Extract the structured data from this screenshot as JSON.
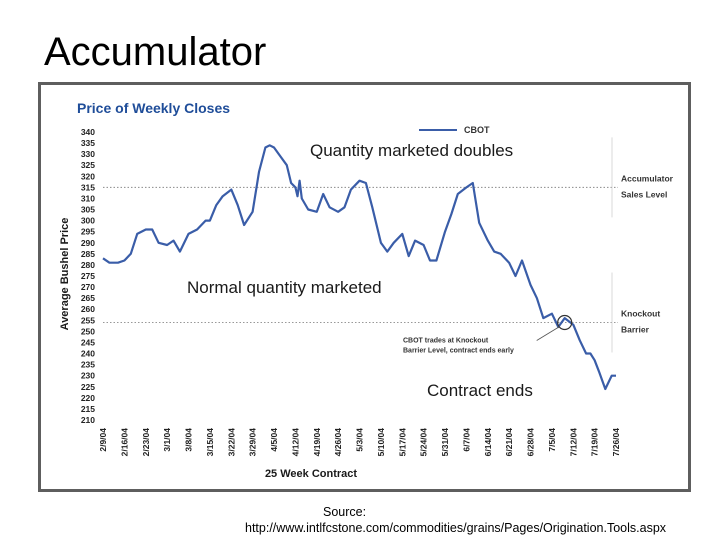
{
  "slide": {
    "title": "Accumulator",
    "source_label": "Source:",
    "source_url": "http://www.intlfcstone.com/commodities/grains/Pages/Origination.Tools.aspx"
  },
  "annotations": {
    "doubles": "Quantity marketed doubles",
    "normal": "Normal quantity marketed",
    "ends": "Contract ends"
  },
  "chart_data": {
    "type": "line",
    "title": "Price of Weekly Closes",
    "ylabel": "Average Bushel Price",
    "xlabel": "25 Week Contract",
    "ylim": [
      210,
      340
    ],
    "ytick_step": 5,
    "grid": false,
    "legend": {
      "position": "top-right",
      "entries": [
        "CBOT"
      ]
    },
    "line_color": "#3a5da8",
    "categories": [
      "2/9/04",
      "2/16/04",
      "2/23/04",
      "3/1/04",
      "3/8/04",
      "3/15/04",
      "3/22/04",
      "3/29/04",
      "4/5/04",
      "4/12/04",
      "4/19/04",
      "4/26/04",
      "5/3/04",
      "5/10/04",
      "5/17/04",
      "5/24/04",
      "5/31/04",
      "6/7/04",
      "6/14/04",
      "6/21/04",
      "6/28/04",
      "7/5/04",
      "7/12/04",
      "7/19/04",
      "7/26/04"
    ],
    "series": [
      {
        "name": "CBOT",
        "x": [
          0,
          0.3,
          0.7,
          1,
          1.3,
          1.6,
          2,
          2.3,
          2.6,
          3,
          3.3,
          3.6,
          4,
          4.4,
          4.8,
          5,
          5.3,
          5.6,
          6,
          6.3,
          6.6,
          7,
          7.3,
          7.6,
          7.8,
          8,
          8.3,
          8.6,
          8.8,
          9,
          9.1,
          9.2,
          9.3,
          9.6,
          10,
          10.3,
          10.6,
          11,
          11.3,
          11.6,
          12,
          12.3,
          12.6,
          13,
          13.3,
          13.6,
          14,
          14.3,
          14.6,
          15,
          15.3,
          15.6,
          16,
          16.3,
          16.6,
          17,
          17.3,
          17.6,
          18,
          18.3,
          18.6,
          19,
          19.3,
          19.6,
          20,
          20.3,
          20.6,
          21,
          21.3,
          21.6,
          22,
          22.3,
          22.6,
          22.8,
          23,
          23.2,
          23.5,
          23.8,
          24
        ],
        "y": [
          283,
          281,
          281,
          282,
          285,
          294,
          296,
          296,
          290,
          289,
          291,
          286,
          294,
          296,
          300,
          300,
          307,
          311,
          314,
          307,
          298,
          304,
          322,
          333,
          334,
          333,
          329,
          325,
          317,
          315,
          311,
          318,
          310,
          305,
          304,
          312,
          306,
          304,
          306,
          314,
          318,
          317,
          306,
          290,
          286,
          290,
          294,
          284,
          291,
          289,
          282,
          282,
          295,
          303,
          312,
          315,
          317,
          299,
          291,
          286,
          285,
          281,
          275,
          282,
          271,
          265,
          256,
          258,
          252,
          256,
          253,
          246,
          240,
          240,
          237,
          232,
          224,
          230,
          230
        ]
      }
    ],
    "reference_lines": [
      {
        "value": 315,
        "labels": [
          "Accumulator",
          "Sales Level"
        ]
      },
      {
        "value": 254,
        "labels": [
          "Knockout",
          "Barrier"
        ]
      }
    ],
    "marker": {
      "x": 21.6,
      "y": 254,
      "note_lines": [
        "CBOT trades at Knockout",
        "Barrier Level, contract ends early"
      ]
    }
  }
}
